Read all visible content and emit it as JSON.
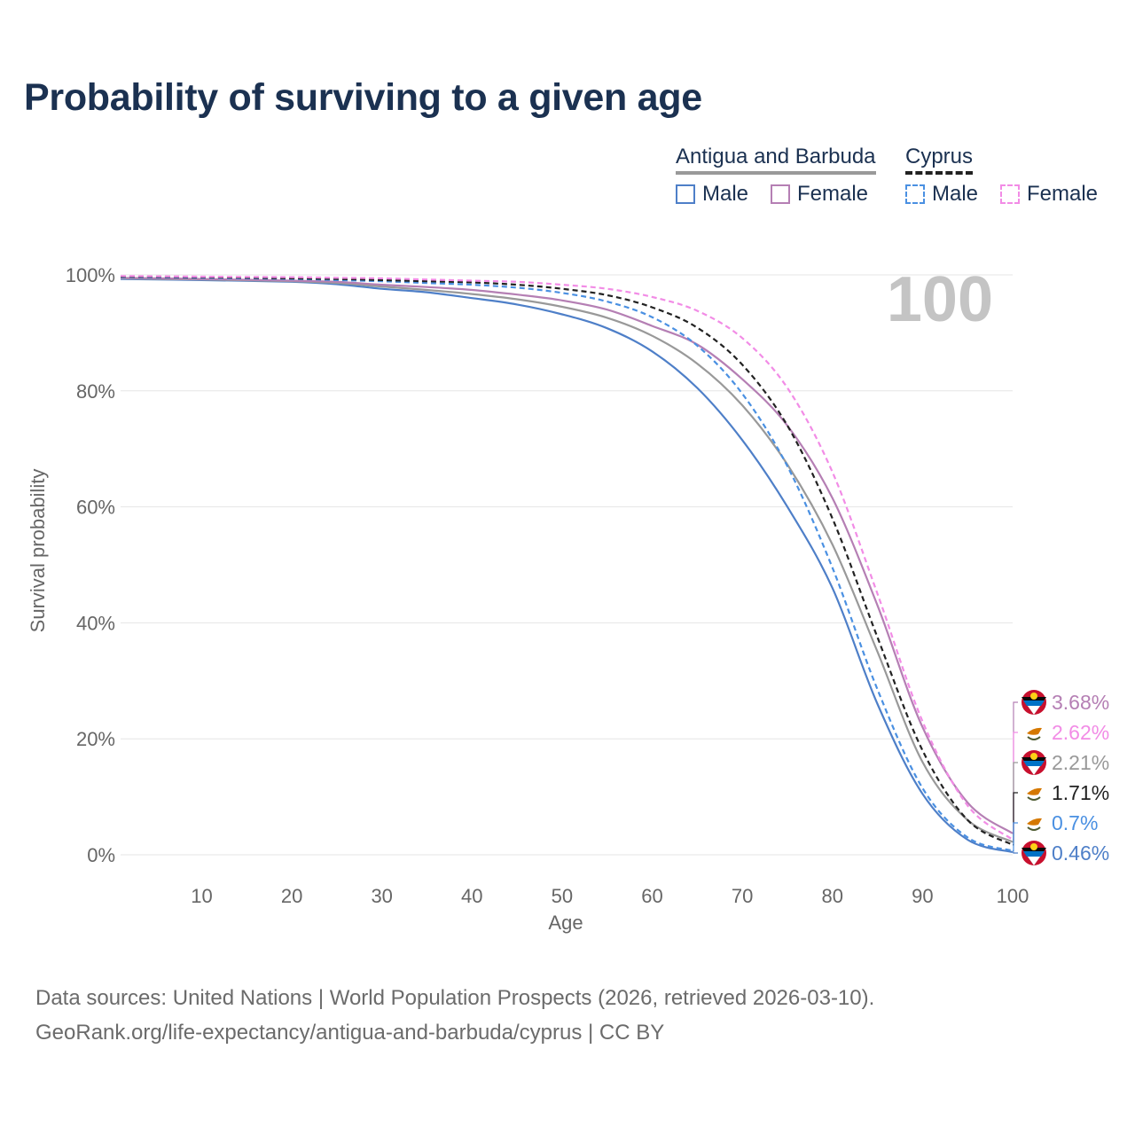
{
  "title": "Probability of surviving to a given age",
  "legend": {
    "groups": [
      {
        "name": "Antigua and Barbuda",
        "style": "solid",
        "color": "#999999"
      },
      {
        "name": "Cyprus",
        "style": "dashed",
        "color": "#222222"
      }
    ],
    "items": [
      {
        "label": "Male",
        "color": "#4e7fc8",
        "style": "solid"
      },
      {
        "label": "Female",
        "color": "#b57fb4",
        "style": "solid"
      },
      {
        "label": "Male",
        "color": "#4a90e2",
        "style": "dashed"
      },
      {
        "label": "Female",
        "color": "#f28ce6",
        "style": "dashed"
      }
    ]
  },
  "current_age": "100",
  "credits": {
    "line1": "Data sources: United Nations | World Population Prospects (2026, retrieved 2026-03-10).",
    "line2": "GeoRank.org/life-expectancy/antigua-and-barbuda/cyprus | CC BY"
  },
  "chart_data": {
    "type": "line",
    "title": "Probability of surviving to a given age",
    "xlabel": "Age",
    "ylabel": "Survival probability",
    "xlim": [
      1,
      100
    ],
    "ylim": [
      0,
      100
    ],
    "x_ticks": [
      10,
      20,
      30,
      40,
      50,
      60,
      70,
      80,
      90,
      100
    ],
    "y_ticks": [
      0,
      20,
      40,
      60,
      80,
      100
    ],
    "y_tick_labels": [
      "0%",
      "20%",
      "40%",
      "60%",
      "80%",
      "100%"
    ],
    "x": [
      1,
      10,
      20,
      25,
      30,
      35,
      40,
      45,
      50,
      55,
      60,
      65,
      70,
      75,
      80,
      85,
      90,
      95,
      100
    ],
    "series": [
      {
        "name": "Antigua and Barbuda Male",
        "color": "#4e7fc8",
        "dash": false,
        "values": [
          99.3,
          99.1,
          98.8,
          98.4,
          97.6,
          97.0,
          96.0,
          94.9,
          93.2,
          90.8,
          86.8,
          80.5,
          71.5,
          60.0,
          46.0,
          26.0,
          10.5,
          2.6,
          0.46
        ],
        "end_label": "0.46%"
      },
      {
        "name": "Antigua and Barbuda Total",
        "color": "#999999",
        "dash": false,
        "values": [
          99.4,
          99.2,
          98.9,
          98.6,
          98.0,
          97.4,
          96.7,
          95.8,
          94.5,
          92.6,
          89.5,
          84.7,
          77.5,
          67.3,
          53.5,
          35.0,
          16.0,
          6.0,
          2.21
        ],
        "end_label": "2.21%"
      },
      {
        "name": "Antigua and Barbuda Female",
        "color": "#b57fb4",
        "dash": false,
        "values": [
          99.5,
          99.3,
          99.0,
          98.8,
          98.3,
          97.9,
          97.4,
          96.6,
          95.6,
          94.0,
          91.2,
          88.0,
          82.0,
          74.0,
          61.5,
          43.0,
          22.0,
          9.0,
          3.68
        ],
        "end_label": "3.68%"
      },
      {
        "name": "Cyprus Male",
        "color": "#4a90e2",
        "dash": true,
        "values": [
          99.6,
          99.5,
          99.3,
          99.1,
          98.9,
          98.6,
          98.3,
          97.8,
          96.9,
          95.4,
          92.7,
          87.8,
          79.5,
          67.0,
          49.5,
          28.5,
          11.5,
          3.0,
          0.7
        ],
        "end_label": "0.7%"
      },
      {
        "name": "Cyprus Total",
        "color": "#222222",
        "dash": true,
        "values": [
          99.7,
          99.6,
          99.4,
          99.3,
          99.1,
          98.9,
          98.7,
          98.3,
          97.6,
          96.5,
          94.4,
          90.9,
          84.5,
          74.0,
          58.0,
          37.5,
          18.0,
          6.0,
          1.71
        ],
        "end_label": "1.71%"
      },
      {
        "name": "Cyprus Female",
        "color": "#f28ce6",
        "dash": true,
        "values": [
          99.8,
          99.7,
          99.6,
          99.5,
          99.4,
          99.2,
          99.0,
          98.8,
          98.3,
          97.6,
          96.2,
          93.8,
          89.1,
          80.5,
          66.0,
          45.0,
          23.0,
          8.5,
          2.62
        ],
        "end_label": "2.62%"
      }
    ]
  }
}
